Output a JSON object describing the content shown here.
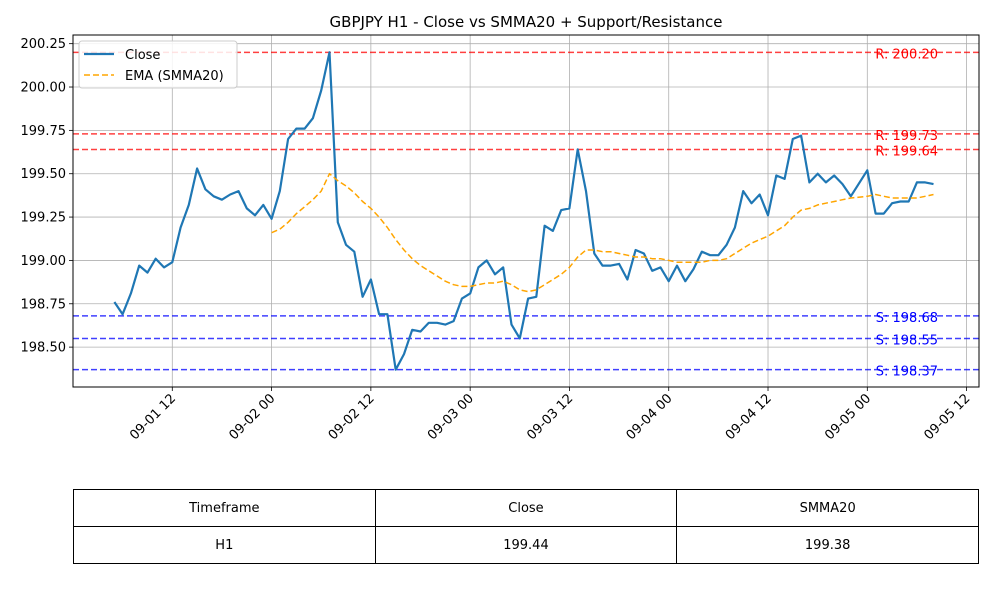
{
  "chart_data": {
    "type": "line",
    "title": "GBPJPY H1 - Close vs SMMA20 + Support/Resistance",
    "xlabel": "",
    "ylabel": "",
    "ylim": [
      198.27,
      200.3
    ],
    "xlim": [
      "2025-09-01 00:00",
      "2025-09-05 13:30"
    ],
    "yticks": [
      198.5,
      198.75,
      199.0,
      199.25,
      199.5,
      199.75,
      200.0,
      200.25
    ],
    "ytick_labels": [
      "198.50",
      "198.75",
      "199.00",
      "199.25",
      "199.50",
      "199.75",
      "200.00",
      "200.25"
    ],
    "xticks": [
      "2025-09-01 12:00",
      "2025-09-02 00:00",
      "2025-09-02 12:00",
      "2025-09-03 00:00",
      "2025-09-03 12:00",
      "2025-09-04 00:00",
      "2025-09-04 12:00",
      "2025-09-05 00:00",
      "2025-09-05 12:00"
    ],
    "xtick_labels": [
      "09-01 12",
      "09-02 00",
      "09-02 12",
      "09-03 00",
      "09-03 12",
      "09-04 00",
      "09-04 12",
      "09-05 00",
      "09-05 12"
    ],
    "grid": true,
    "legend": "top-left",
    "series": [
      {
        "name": "Close",
        "color": "#1f77b4",
        "style": "solid",
        "points": [
          [
            "2025-09-01 05:00",
            198.76
          ],
          [
            "2025-09-01 06:00",
            198.69
          ],
          [
            "2025-09-01 07:00",
            198.81
          ],
          [
            "2025-09-01 08:00",
            198.97
          ],
          [
            "2025-09-01 09:00",
            198.93
          ],
          [
            "2025-09-01 10:00",
            199.01
          ],
          [
            "2025-09-01 11:00",
            198.96
          ],
          [
            "2025-09-01 12:00",
            198.99
          ],
          [
            "2025-09-01 13:00",
            199.19
          ],
          [
            "2025-09-01 14:00",
            199.32
          ],
          [
            "2025-09-01 15:00",
            199.53
          ],
          [
            "2025-09-01 16:00",
            199.41
          ],
          [
            "2025-09-01 17:00",
            199.37
          ],
          [
            "2025-09-01 18:00",
            199.35
          ],
          [
            "2025-09-01 19:00",
            199.38
          ],
          [
            "2025-09-01 20:00",
            199.4
          ],
          [
            "2025-09-01 21:00",
            199.3
          ],
          [
            "2025-09-01 22:00",
            199.26
          ],
          [
            "2025-09-01 23:00",
            199.32
          ],
          [
            "2025-09-02 00:00",
            199.24
          ],
          [
            "2025-09-02 01:00",
            199.4
          ],
          [
            "2025-09-02 02:00",
            199.7
          ],
          [
            "2025-09-02 03:00",
            199.76
          ],
          [
            "2025-09-02 04:00",
            199.76
          ],
          [
            "2025-09-02 05:00",
            199.82
          ],
          [
            "2025-09-02 06:00",
            199.98
          ],
          [
            "2025-09-02 07:00",
            200.2
          ],
          [
            "2025-09-02 08:00",
            199.22
          ],
          [
            "2025-09-02 09:00",
            199.09
          ],
          [
            "2025-09-02 10:00",
            199.05
          ],
          [
            "2025-09-02 11:00",
            198.79
          ],
          [
            "2025-09-02 12:00",
            198.89
          ],
          [
            "2025-09-02 13:00",
            198.69
          ],
          [
            "2025-09-02 14:00",
            198.69
          ],
          [
            "2025-09-02 15:00",
            198.37
          ],
          [
            "2025-09-02 16:00",
            198.46
          ],
          [
            "2025-09-02 17:00",
            198.6
          ],
          [
            "2025-09-02 18:00",
            198.59
          ],
          [
            "2025-09-02 19:00",
            198.64
          ],
          [
            "2025-09-02 20:00",
            198.64
          ],
          [
            "2025-09-02 21:00",
            198.63
          ],
          [
            "2025-09-02 22:00",
            198.65
          ],
          [
            "2025-09-02 23:00",
            198.78
          ],
          [
            "2025-09-03 00:00",
            198.81
          ],
          [
            "2025-09-03 01:00",
            198.96
          ],
          [
            "2025-09-03 02:00",
            199.0
          ],
          [
            "2025-09-03 03:00",
            198.92
          ],
          [
            "2025-09-03 04:00",
            198.96
          ],
          [
            "2025-09-03 05:00",
            198.63
          ],
          [
            "2025-09-03 06:00",
            198.55
          ],
          [
            "2025-09-03 07:00",
            198.78
          ],
          [
            "2025-09-03 08:00",
            198.79
          ],
          [
            "2025-09-03 09:00",
            199.2
          ],
          [
            "2025-09-03 10:00",
            199.17
          ],
          [
            "2025-09-03 11:00",
            199.29
          ],
          [
            "2025-09-03 12:00",
            199.3
          ],
          [
            "2025-09-03 13:00",
            199.64
          ],
          [
            "2025-09-03 14:00",
            199.4
          ],
          [
            "2025-09-03 15:00",
            199.04
          ],
          [
            "2025-09-03 16:00",
            198.97
          ],
          [
            "2025-09-03 17:00",
            198.97
          ],
          [
            "2025-09-03 18:00",
            198.98
          ],
          [
            "2025-09-03 19:00",
            198.89
          ],
          [
            "2025-09-03 20:00",
            199.06
          ],
          [
            "2025-09-03 21:00",
            199.04
          ],
          [
            "2025-09-03 22:00",
            198.94
          ],
          [
            "2025-09-03 23:00",
            198.96
          ],
          [
            "2025-09-04 00:00",
            198.88
          ],
          [
            "2025-09-04 01:00",
            198.97
          ],
          [
            "2025-09-04 02:00",
            198.88
          ],
          [
            "2025-09-04 03:00",
            198.95
          ],
          [
            "2025-09-04 04:00",
            199.05
          ],
          [
            "2025-09-04 05:00",
            199.03
          ],
          [
            "2025-09-04 06:00",
            199.03
          ],
          [
            "2025-09-04 07:00",
            199.09
          ],
          [
            "2025-09-04 08:00",
            199.19
          ],
          [
            "2025-09-04 09:00",
            199.4
          ],
          [
            "2025-09-04 10:00",
            199.33
          ],
          [
            "2025-09-04 11:00",
            199.38
          ],
          [
            "2025-09-04 12:00",
            199.26
          ],
          [
            "2025-09-04 13:00",
            199.49
          ],
          [
            "2025-09-04 14:00",
            199.47
          ],
          [
            "2025-09-04 15:00",
            199.7
          ],
          [
            "2025-09-04 16:00",
            199.72
          ],
          [
            "2025-09-04 17:00",
            199.45
          ],
          [
            "2025-09-04 18:00",
            199.5
          ],
          [
            "2025-09-04 19:00",
            199.45
          ],
          [
            "2025-09-04 20:00",
            199.49
          ],
          [
            "2025-09-04 21:00",
            199.44
          ],
          [
            "2025-09-04 22:00",
            199.37
          ],
          [
            "2025-09-05 00:00",
            199.52
          ],
          [
            "2025-09-05 01:00",
            199.27
          ],
          [
            "2025-09-05 02:00",
            199.27
          ],
          [
            "2025-09-05 03:00",
            199.33
          ],
          [
            "2025-09-05 04:00",
            199.34
          ],
          [
            "2025-09-05 05:00",
            199.34
          ],
          [
            "2025-09-05 06:00",
            199.45
          ],
          [
            "2025-09-05 07:00",
            199.45
          ],
          [
            "2025-09-05 08:00",
            199.44
          ]
        ]
      },
      {
        "name": "EMA (SMMA20)",
        "color": "#ffa500",
        "style": "dashed",
        "points": [
          [
            "2025-09-02 00:00",
            199.16
          ],
          [
            "2025-09-02 01:00",
            199.18
          ],
          [
            "2025-09-02 02:00",
            199.22
          ],
          [
            "2025-09-02 03:00",
            199.27
          ],
          [
            "2025-09-02 04:00",
            199.31
          ],
          [
            "2025-09-02 05:00",
            199.35
          ],
          [
            "2025-09-02 06:00",
            199.4
          ],
          [
            "2025-09-02 07:00",
            199.5
          ],
          [
            "2025-09-02 08:00",
            199.46
          ],
          [
            "2025-09-02 09:00",
            199.43
          ],
          [
            "2025-09-02 10:00",
            199.39
          ],
          [
            "2025-09-02 11:00",
            199.34
          ],
          [
            "2025-09-02 12:00",
            199.3
          ],
          [
            "2025-09-02 13:00",
            199.25
          ],
          [
            "2025-09-02 14:00",
            199.19
          ],
          [
            "2025-09-02 15:00",
            199.12
          ],
          [
            "2025-09-02 16:00",
            199.06
          ],
          [
            "2025-09-02 17:00",
            199.01
          ],
          [
            "2025-09-02 18:00",
            198.97
          ],
          [
            "2025-09-02 19:00",
            198.94
          ],
          [
            "2025-09-02 20:00",
            198.91
          ],
          [
            "2025-09-02 21:00",
            198.88
          ],
          [
            "2025-09-02 22:00",
            198.86
          ],
          [
            "2025-09-02 23:00",
            198.85
          ],
          [
            "2025-09-03 00:00",
            198.85
          ],
          [
            "2025-09-03 01:00",
            198.86
          ],
          [
            "2025-09-03 02:00",
            198.87
          ],
          [
            "2025-09-03 03:00",
            198.87
          ],
          [
            "2025-09-03 04:00",
            198.88
          ],
          [
            "2025-09-03 05:00",
            198.86
          ],
          [
            "2025-09-03 06:00",
            198.83
          ],
          [
            "2025-09-03 07:00",
            198.82
          ],
          [
            "2025-09-03 08:00",
            198.83
          ],
          [
            "2025-09-03 09:00",
            198.86
          ],
          [
            "2025-09-03 10:00",
            198.89
          ],
          [
            "2025-09-03 11:00",
            198.92
          ],
          [
            "2025-09-03 12:00",
            198.96
          ],
          [
            "2025-09-03 13:00",
            199.02
          ],
          [
            "2025-09-03 14:00",
            199.06
          ],
          [
            "2025-09-03 15:00",
            199.06
          ],
          [
            "2025-09-03 16:00",
            199.05
          ],
          [
            "2025-09-03 17:00",
            199.05
          ],
          [
            "2025-09-03 18:00",
            199.04
          ],
          [
            "2025-09-03 19:00",
            199.03
          ],
          [
            "2025-09-03 20:00",
            199.02
          ],
          [
            "2025-09-03 21:00",
            199.02
          ],
          [
            "2025-09-03 22:00",
            199.01
          ],
          [
            "2025-09-03 23:00",
            199.01
          ],
          [
            "2025-09-04 00:00",
            199.0
          ],
          [
            "2025-09-04 01:00",
            198.99
          ],
          [
            "2025-09-04 02:00",
            198.99
          ],
          [
            "2025-09-04 03:00",
            198.99
          ],
          [
            "2025-09-04 04:00",
            198.99
          ],
          [
            "2025-09-04 05:00",
            199.0
          ],
          [
            "2025-09-04 06:00",
            199.0
          ],
          [
            "2025-09-04 07:00",
            199.01
          ],
          [
            "2025-09-04 08:00",
            199.04
          ],
          [
            "2025-09-04 09:00",
            199.07
          ],
          [
            "2025-09-04 10:00",
            199.1
          ],
          [
            "2025-09-04 11:00",
            199.12
          ],
          [
            "2025-09-04 12:00",
            199.14
          ],
          [
            "2025-09-04 13:00",
            199.17
          ],
          [
            "2025-09-04 14:00",
            199.2
          ],
          [
            "2025-09-04 15:00",
            199.25
          ],
          [
            "2025-09-04 16:00",
            199.29
          ],
          [
            "2025-09-04 17:00",
            199.3
          ],
          [
            "2025-09-04 18:00",
            199.32
          ],
          [
            "2025-09-04 19:00",
            199.33
          ],
          [
            "2025-09-04 20:00",
            199.34
          ],
          [
            "2025-09-04 21:00",
            199.35
          ],
          [
            "2025-09-04 22:00",
            199.36
          ],
          [
            "2025-09-05 00:00",
            199.37
          ],
          [
            "2025-09-05 01:00",
            199.38
          ],
          [
            "2025-09-05 02:00",
            199.37
          ],
          [
            "2025-09-05 03:00",
            199.36
          ],
          [
            "2025-09-05 04:00",
            199.36
          ],
          [
            "2025-09-05 05:00",
            199.36
          ],
          [
            "2025-09-05 06:00",
            199.36
          ],
          [
            "2025-09-05 07:00",
            199.37
          ],
          [
            "2025-09-05 08:00",
            199.38
          ]
        ]
      }
    ],
    "levels": [
      {
        "kind": "resistance",
        "label": "R: 200.20",
        "value": 200.2,
        "color": "#ff0000"
      },
      {
        "kind": "resistance",
        "label": "R: 199.73",
        "value": 199.73,
        "color": "#ff0000"
      },
      {
        "kind": "resistance",
        "label": "R: 199.64",
        "value": 199.64,
        "color": "#ff0000"
      },
      {
        "kind": "support",
        "label": "S: 198.68",
        "value": 198.68,
        "color": "#0000ff"
      },
      {
        "kind": "support",
        "label": "S: 198.55",
        "value": 198.55,
        "color": "#0000ff"
      },
      {
        "kind": "support",
        "label": "S: 198.37",
        "value": 198.37,
        "color": "#0000ff"
      }
    ]
  },
  "table": {
    "headers": [
      "Timeframe",
      "Close",
      "SMMA20"
    ],
    "row": [
      "H1",
      "199.44",
      "199.38"
    ]
  }
}
